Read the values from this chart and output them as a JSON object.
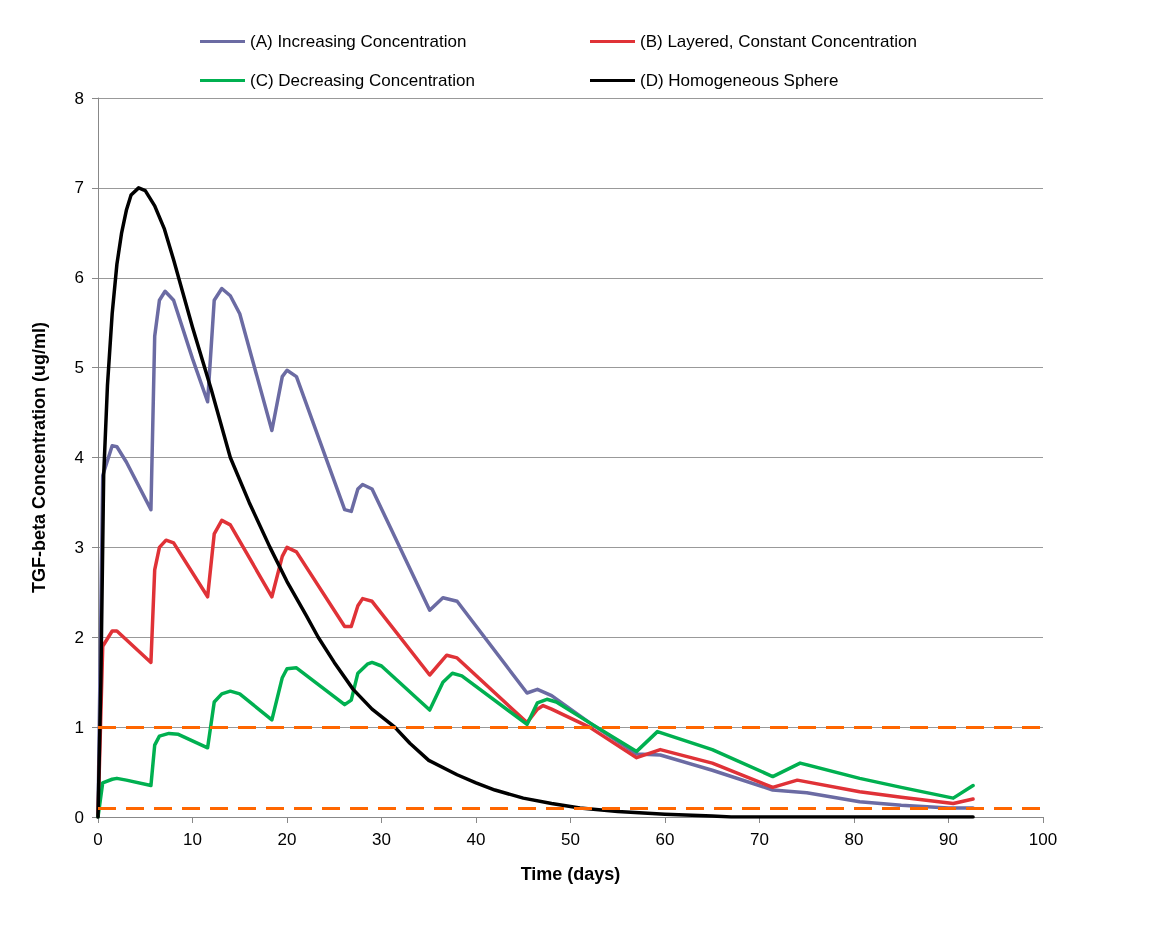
{
  "chart_data": {
    "type": "line",
    "xlabel": "Time (days)",
    "ylabel": "TGF-beta Concentration (ug/ml)",
    "xlim": [
      0,
      100
    ],
    "xticks": [
      0,
      10,
      20,
      30,
      40,
      50,
      60,
      70,
      80,
      90,
      100
    ],
    "ylim": [
      0,
      8
    ],
    "yticks": [
      0,
      1,
      2,
      3,
      4,
      5,
      6,
      7,
      8
    ],
    "grid": "y",
    "legend": "top",
    "marker": "none",
    "line_style": "solid",
    "series": [
      {
        "name": "(A) Increasing Concentration",
        "color": "#6b6ba3",
        "x": [
          0,
          0.5,
          1.5,
          2,
          3,
          5.6,
          6,
          6.5,
          7.1,
          8,
          10,
          11.6,
          12.3,
          13.1,
          14,
          15,
          18.4,
          19.5,
          20,
          21,
          26.1,
          26.8,
          27.5,
          28,
          29,
          35.1,
          36.5,
          38,
          45.4,
          46.5,
          48,
          52,
          57,
          59.5,
          65,
          71.4,
          75,
          80.6,
          85,
          90,
          92.6
        ],
        "values": [
          0,
          3.8,
          4.13,
          4.12,
          3.95,
          3.42,
          5.35,
          5.75,
          5.85,
          5.75,
          5.1,
          4.62,
          5.75,
          5.88,
          5.8,
          5.6,
          4.3,
          4.9,
          4.97,
          4.9,
          3.42,
          3.4,
          3.65,
          3.7,
          3.65,
          2.3,
          2.44,
          2.4,
          1.38,
          1.42,
          1.35,
          1.05,
          0.7,
          0.69,
          0.52,
          0.3,
          0.27,
          0.17,
          0.13,
          0.1,
          0.1
        ]
      },
      {
        "name": "(B) Layered, Constant Concentration",
        "color": "#e03237",
        "x": [
          0,
          0.5,
          1.5,
          2,
          5.6,
          6,
          6.5,
          7.2,
          8,
          11.6,
          12.3,
          13.1,
          14,
          18.4,
          19.5,
          20,
          21,
          26.1,
          26.8,
          27.5,
          28,
          29,
          35.1,
          36.9,
          38,
          45.4,
          46.5,
          47.1,
          48,
          52,
          57,
          59.5,
          65,
          71.4,
          74,
          80.6,
          85,
          90.5,
          92.6
        ],
        "values": [
          0,
          1.9,
          2.07,
          2.07,
          1.72,
          2.75,
          3.0,
          3.08,
          3.05,
          2.45,
          3.15,
          3.3,
          3.25,
          2.45,
          2.9,
          3.0,
          2.95,
          2.12,
          2.12,
          2.35,
          2.43,
          2.4,
          1.58,
          1.8,
          1.77,
          1.05,
          1.2,
          1.24,
          1.2,
          1.0,
          0.66,
          0.75,
          0.6,
          0.33,
          0.41,
          0.28,
          0.22,
          0.15,
          0.2
        ]
      },
      {
        "name": "(C) Decreasing Concentration",
        "color": "#00b050",
        "x": [
          0,
          0.5,
          1.5,
          2,
          3,
          5.6,
          6,
          6.5,
          7.5,
          8.5,
          11.6,
          12.3,
          13.1,
          14,
          15,
          18.4,
          19.5,
          20,
          21,
          26.1,
          26.8,
          27.5,
          28.5,
          29,
          30,
          35.1,
          36.5,
          37.5,
          38.5,
          45.4,
          46.5,
          47.5,
          48.5,
          52,
          57,
          59.2,
          65,
          71.4,
          74.3,
          80.6,
          85,
          90.5,
          92.6
        ],
        "values": [
          0,
          0.38,
          0.42,
          0.43,
          0.41,
          0.35,
          0.8,
          0.9,
          0.93,
          0.92,
          0.77,
          1.28,
          1.37,
          1.4,
          1.37,
          1.08,
          1.55,
          1.65,
          1.66,
          1.25,
          1.3,
          1.6,
          1.7,
          1.72,
          1.68,
          1.19,
          1.5,
          1.6,
          1.57,
          1.03,
          1.27,
          1.31,
          1.28,
          1.05,
          0.73,
          0.95,
          0.75,
          0.45,
          0.6,
          0.43,
          0.33,
          0.21,
          0.35
        ]
      },
      {
        "name": "(D) Homogeneous Sphere",
        "color": "#000000",
        "x": [
          0,
          0.3,
          0.6,
          1,
          1.5,
          2,
          2.5,
          3,
          3.5,
          4.3,
          5,
          6,
          7,
          8,
          10,
          12,
          14,
          16,
          18.2,
          20,
          22,
          23.3,
          25,
          27,
          29,
          31.4,
          33,
          35,
          38,
          40,
          42,
          45,
          48,
          51,
          55,
          60,
          65,
          67,
          92.6
        ],
        "values": [
          0,
          1.5,
          3.8,
          4.8,
          5.6,
          6.15,
          6.5,
          6.75,
          6.92,
          7.0,
          6.97,
          6.8,
          6.55,
          6.2,
          5.45,
          4.75,
          4.0,
          3.5,
          3.0,
          2.62,
          2.25,
          2.0,
          1.72,
          1.42,
          1.2,
          1.0,
          0.82,
          0.63,
          0.47,
          0.38,
          0.3,
          0.21,
          0.15,
          0.1,
          0.06,
          0.03,
          0.01,
          0,
          0
        ]
      }
    ],
    "ref_lines": [
      {
        "axis": "y",
        "value": 1,
        "color": "#ff6600",
        "line_style": "dashed"
      },
      {
        "axis": "y",
        "value": 0.1,
        "color": "#ff6600",
        "line_style": "dashed"
      }
    ]
  }
}
